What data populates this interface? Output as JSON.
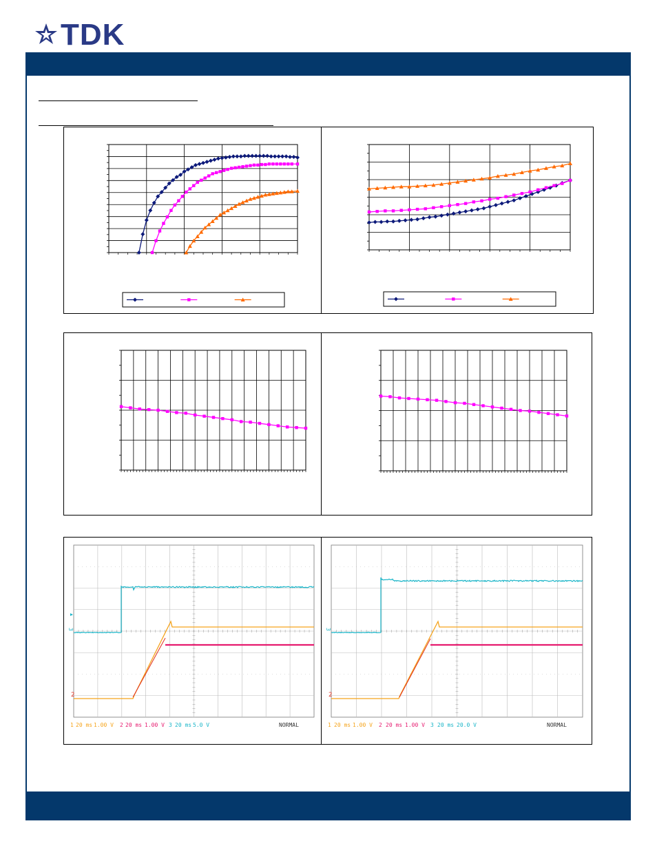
{
  "header": {
    "brand": "TDK",
    "logo_icon": "tdk-star-logo-icon",
    "bar_color": "#04386b"
  },
  "colors": {
    "navy": "#0d1a7a",
    "magenta": "#ff00ff",
    "orange": "#ff6a00",
    "scope_cyan": "#19b5c8",
    "scope_yellow": "#f5a31a",
    "scope_pink": "#e6196e",
    "scope_red": "#e03020"
  },
  "scope_captures": [
    {
      "channels": [
        {
          "num": "1",
          "time": "20 ms",
          "volts": "1.00 V",
          "color": "#f5a31a"
        },
        {
          "num": "2",
          "time": "20 ms",
          "volts": "1.00 V",
          "color": "#e6196e"
        },
        {
          "num": "3",
          "time": "20 ms",
          "volts": "5.0 V",
          "color": "#19b5c8"
        }
      ],
      "mode": "NORMAL"
    },
    {
      "channels": [
        {
          "num": "1",
          "time": "20 ms",
          "volts": "1.00 V",
          "color": "#f5a31a"
        },
        {
          "num": "2",
          "time": "20 ms",
          "volts": "1.00 V",
          "color": "#e6196e"
        },
        {
          "num": "3",
          "time": "20 ms",
          "volts": "20.0 V",
          "color": "#19b5c8"
        }
      ],
      "mode": "NORMAL"
    }
  ],
  "chart_data": [
    {
      "type": "line",
      "series": [
        {
          "color": "#0d1a7a",
          "marker": "diamond",
          "points": [
            [
              0.16,
              0
            ],
            [
              0.18,
              0.17
            ],
            [
              0.2,
              0.3
            ],
            [
              0.22,
              0.39
            ],
            [
              0.24,
              0.46
            ],
            [
              0.26,
              0.52
            ],
            [
              0.28,
              0.56
            ],
            [
              0.3,
              0.6
            ],
            [
              0.32,
              0.64
            ],
            [
              0.34,
              0.67
            ],
            [
              0.36,
              0.7
            ],
            [
              0.38,
              0.72
            ],
            [
              0.4,
              0.75
            ],
            [
              0.42,
              0.77
            ],
            [
              0.44,
              0.79
            ],
            [
              0.46,
              0.81
            ],
            [
              0.48,
              0.82
            ],
            [
              0.5,
              0.83
            ],
            [
              0.52,
              0.84
            ],
            [
              0.54,
              0.85
            ],
            [
              0.56,
              0.86
            ],
            [
              0.58,
              0.87
            ],
            [
              0.6,
              0.875
            ],
            [
              0.62,
              0.88
            ],
            [
              0.64,
              0.885
            ],
            [
              0.66,
              0.89
            ],
            [
              0.68,
              0.89
            ],
            [
              0.7,
              0.89
            ],
            [
              0.72,
              0.895
            ],
            [
              0.74,
              0.895
            ],
            [
              0.76,
              0.895
            ],
            [
              0.78,
              0.895
            ],
            [
              0.8,
              0.895
            ],
            [
              0.82,
              0.895
            ],
            [
              0.84,
              0.895
            ],
            [
              0.86,
              0.89
            ],
            [
              0.88,
              0.89
            ],
            [
              0.9,
              0.89
            ],
            [
              0.92,
              0.89
            ],
            [
              0.94,
              0.89
            ],
            [
              0.96,
              0.885
            ],
            [
              0.98,
              0.885
            ],
            [
              1.0,
              0.88
            ]
          ]
        },
        {
          "color": "#ff00ff",
          "marker": "square",
          "points": [
            [
              0.23,
              0
            ],
            [
              0.25,
              0.11
            ],
            [
              0.27,
              0.2
            ],
            [
              0.29,
              0.27
            ],
            [
              0.31,
              0.33
            ],
            [
              0.33,
              0.39
            ],
            [
              0.35,
              0.44
            ],
            [
              0.37,
              0.48
            ],
            [
              0.39,
              0.52
            ],
            [
              0.41,
              0.56
            ],
            [
              0.43,
              0.59
            ],
            [
              0.45,
              0.62
            ],
            [
              0.47,
              0.65
            ],
            [
              0.49,
              0.67
            ],
            [
              0.51,
              0.69
            ],
            [
              0.53,
              0.71
            ],
            [
              0.55,
              0.73
            ],
            [
              0.57,
              0.74
            ],
            [
              0.59,
              0.75
            ],
            [
              0.61,
              0.76
            ],
            [
              0.63,
              0.77
            ],
            [
              0.65,
              0.78
            ],
            [
              0.67,
              0.785
            ],
            [
              0.69,
              0.79
            ],
            [
              0.71,
              0.795
            ],
            [
              0.73,
              0.8
            ],
            [
              0.75,
              0.805
            ],
            [
              0.77,
              0.81
            ],
            [
              0.79,
              0.81
            ],
            [
              0.81,
              0.815
            ],
            [
              0.83,
              0.815
            ],
            [
              0.85,
              0.82
            ],
            [
              0.87,
              0.82
            ],
            [
              0.89,
              0.82
            ],
            [
              0.91,
              0.82
            ],
            [
              0.93,
              0.82
            ],
            [
              0.95,
              0.82
            ],
            [
              0.97,
              0.82
            ],
            [
              1.0,
              0.82
            ]
          ]
        },
        {
          "color": "#ff6a00",
          "marker": "triangle",
          "points": [
            [
              0.41,
              0
            ],
            [
              0.43,
              0.06
            ],
            [
              0.45,
              0.11
            ],
            [
              0.47,
              0.15
            ],
            [
              0.49,
              0.19
            ],
            [
              0.51,
              0.23
            ],
            [
              0.53,
              0.26
            ],
            [
              0.55,
              0.29
            ],
            [
              0.57,
              0.32
            ],
            [
              0.59,
              0.35
            ],
            [
              0.61,
              0.37
            ],
            [
              0.63,
              0.39
            ],
            [
              0.65,
              0.41
            ],
            [
              0.67,
              0.43
            ],
            [
              0.69,
              0.45
            ],
            [
              0.71,
              0.465
            ],
            [
              0.73,
              0.48
            ],
            [
              0.75,
              0.495
            ],
            [
              0.77,
              0.505
            ],
            [
              0.79,
              0.515
            ],
            [
              0.81,
              0.525
            ],
            [
              0.83,
              0.535
            ],
            [
              0.85,
              0.54
            ],
            [
              0.87,
              0.545
            ],
            [
              0.89,
              0.55
            ],
            [
              0.91,
              0.555
            ],
            [
              0.93,
              0.56
            ],
            [
              0.95,
              0.565
            ],
            [
              0.97,
              0.565
            ],
            [
              1.0,
              0.57
            ]
          ]
        }
      ],
      "grid": true,
      "legend": "bottom"
    },
    {
      "type": "line",
      "series": [
        {
          "color": "#0d1a7a",
          "marker": "diamond",
          "points": [
            [
              0,
              0.26
            ],
            [
              0.03,
              0.265
            ],
            [
              0.06,
              0.265
            ],
            [
              0.09,
              0.27
            ],
            [
              0.12,
              0.27
            ],
            [
              0.15,
              0.275
            ],
            [
              0.18,
              0.28
            ],
            [
              0.21,
              0.285
            ],
            [
              0.24,
              0.29
            ],
            [
              0.27,
              0.3
            ],
            [
              0.3,
              0.31
            ],
            [
              0.33,
              0.315
            ],
            [
              0.36,
              0.325
            ],
            [
              0.39,
              0.335
            ],
            [
              0.42,
              0.345
            ],
            [
              0.45,
              0.355
            ],
            [
              0.48,
              0.365
            ],
            [
              0.51,
              0.375
            ],
            [
              0.54,
              0.385
            ],
            [
              0.57,
              0.395
            ],
            [
              0.6,
              0.41
            ],
            [
              0.63,
              0.425
            ],
            [
              0.66,
              0.44
            ],
            [
              0.69,
              0.455
            ],
            [
              0.72,
              0.47
            ],
            [
              0.75,
              0.49
            ],
            [
              0.78,
              0.51
            ],
            [
              0.81,
              0.53
            ],
            [
              0.84,
              0.55
            ],
            [
              0.87,
              0.57
            ],
            [
              0.9,
              0.59
            ],
            [
              0.93,
              0.61
            ],
            [
              0.96,
              0.635
            ],
            [
              1.0,
              0.66
            ]
          ]
        },
        {
          "color": "#ff00ff",
          "marker": "square",
          "points": [
            [
              0,
              0.36
            ],
            [
              0.04,
              0.365
            ],
            [
              0.08,
              0.37
            ],
            [
              0.12,
              0.37
            ],
            [
              0.16,
              0.375
            ],
            [
              0.2,
              0.38
            ],
            [
              0.24,
              0.385
            ],
            [
              0.28,
              0.39
            ],
            [
              0.32,
              0.4
            ],
            [
              0.36,
              0.41
            ],
            [
              0.4,
              0.42
            ],
            [
              0.44,
              0.43
            ],
            [
              0.48,
              0.44
            ],
            [
              0.52,
              0.455
            ],
            [
              0.56,
              0.465
            ],
            [
              0.6,
              0.48
            ],
            [
              0.64,
              0.49
            ],
            [
              0.68,
              0.505
            ],
            [
              0.72,
              0.52
            ],
            [
              0.76,
              0.535
            ],
            [
              0.8,
              0.55
            ],
            [
              0.84,
              0.57
            ],
            [
              0.88,
              0.59
            ],
            [
              0.92,
              0.61
            ],
            [
              0.96,
              0.63
            ],
            [
              1.0,
              0.66
            ]
          ]
        },
        {
          "color": "#ff6a00",
          "marker": "triangle",
          "points": [
            [
              0,
              0.58
            ],
            [
              0.04,
              0.585
            ],
            [
              0.08,
              0.59
            ],
            [
              0.12,
              0.595
            ],
            [
              0.16,
              0.6
            ],
            [
              0.2,
              0.6
            ],
            [
              0.24,
              0.605
            ],
            [
              0.28,
              0.61
            ],
            [
              0.32,
              0.615
            ],
            [
              0.36,
              0.625
            ],
            [
              0.4,
              0.635
            ],
            [
              0.44,
              0.645
            ],
            [
              0.48,
              0.655
            ],
            [
              0.52,
              0.665
            ],
            [
              0.56,
              0.675
            ],
            [
              0.6,
              0.685
            ],
            [
              0.64,
              0.7
            ],
            [
              0.68,
              0.71
            ],
            [
              0.72,
              0.72
            ],
            [
              0.76,
              0.735
            ],
            [
              0.8,
              0.75
            ],
            [
              0.84,
              0.76
            ],
            [
              0.88,
              0.775
            ],
            [
              0.92,
              0.79
            ],
            [
              0.96,
              0.8
            ],
            [
              1.0,
              0.82
            ]
          ]
        }
      ],
      "grid": true,
      "legend": "bottom"
    },
    {
      "type": "line",
      "series": [
        {
          "color": "#ff00ff",
          "marker": "square",
          "points": [
            [
              0,
              0.53
            ],
            [
              0.05,
              0.52
            ],
            [
              0.1,
              0.51
            ],
            [
              0.15,
              0.505
            ],
            [
              0.2,
              0.5
            ],
            [
              0.25,
              0.49
            ],
            [
              0.3,
              0.48
            ],
            [
              0.35,
              0.475
            ],
            [
              0.4,
              0.46
            ],
            [
              0.45,
              0.45
            ],
            [
              0.5,
              0.44
            ],
            [
              0.55,
              0.43
            ],
            [
              0.6,
              0.42
            ],
            [
              0.65,
              0.405
            ],
            [
              0.7,
              0.4
            ],
            [
              0.75,
              0.39
            ],
            [
              0.8,
              0.38
            ],
            [
              0.85,
              0.37
            ],
            [
              0.9,
              0.36
            ],
            [
              0.95,
              0.355
            ],
            [
              1.0,
              0.35
            ]
          ]
        }
      ],
      "grid": true
    },
    {
      "type": "line",
      "series": [
        {
          "color": "#ff00ff",
          "marker": "square",
          "points": [
            [
              0,
              0.62
            ],
            [
              0.05,
              0.615
            ],
            [
              0.1,
              0.605
            ],
            [
              0.15,
              0.6
            ],
            [
              0.2,
              0.595
            ],
            [
              0.25,
              0.59
            ],
            [
              0.3,
              0.585
            ],
            [
              0.35,
              0.575
            ],
            [
              0.4,
              0.565
            ],
            [
              0.45,
              0.56
            ],
            [
              0.5,
              0.55
            ],
            [
              0.55,
              0.54
            ],
            [
              0.6,
              0.53
            ],
            [
              0.65,
              0.52
            ],
            [
              0.7,
              0.51
            ],
            [
              0.75,
              0.5
            ],
            [
              0.8,
              0.495
            ],
            [
              0.85,
              0.485
            ],
            [
              0.9,
              0.475
            ],
            [
              0.95,
              0.465
            ],
            [
              1.0,
              0.455
            ]
          ]
        }
      ],
      "grid": true
    }
  ]
}
